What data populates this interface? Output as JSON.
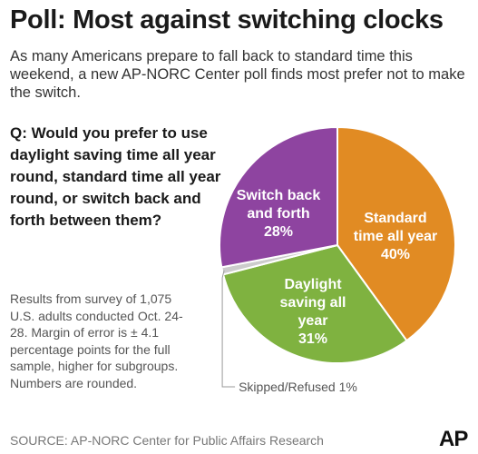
{
  "title": "Poll: Most against switching clocks",
  "subtitle": "As many Americans prepare to fall back to standard time this weekend, a new AP-NORC Center poll finds most prefer not to make the switch.",
  "question": "Q: Would you prefer to use daylight saving time all year round, standard time all year round, or switch back and forth between them?",
  "methodology": "Results from survey of 1,075 U.S. adults conducted Oct. 24-28. Margin of error is ± 4.1 percentage points for the full sample, higher for subgroups. Numbers are rounded.",
  "source": "SOURCE: AP-NORC Center for Public Affairs Research",
  "logo": "AP",
  "chart_data": {
    "type": "pie",
    "slices": [
      {
        "label_lines": [
          "Standard",
          "time all year"
        ],
        "value": 40,
        "value_label": "40%",
        "color": "#e18b23"
      },
      {
        "label_lines": [
          "Daylight",
          "saving all",
          "year"
        ],
        "value": 31,
        "value_label": "31%",
        "color": "#7fb240"
      },
      {
        "label_lines": [
          "Skipped/Refused 1%"
        ],
        "value": 1,
        "value_label": "",
        "color": "#cccccc",
        "callout": true
      },
      {
        "label_lines": [
          "Switch back",
          "and forth"
        ],
        "value": 28,
        "value_label": "28%",
        "color": "#8e44a0"
      }
    ]
  }
}
